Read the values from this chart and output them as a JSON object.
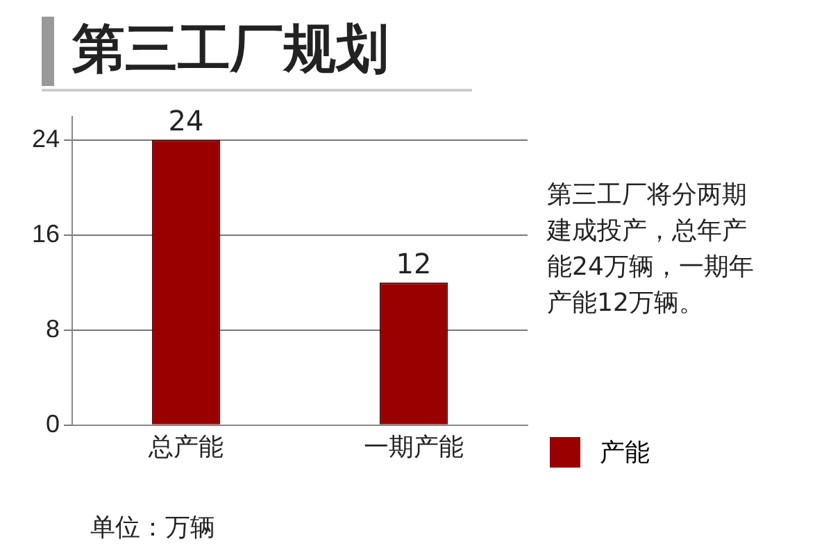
{
  "chart_data": {
    "type": "bar",
    "title": "第三工厂规划",
    "categories": [
      "总产能",
      "一期产能"
    ],
    "series": [
      {
        "name": "产能",
        "color": "#990000",
        "values": [
          24,
          12
        ]
      }
    ],
    "ylim": [
      0,
      26
    ],
    "yticks": [
      0,
      8,
      16,
      24
    ],
    "grid": "y",
    "legend": "bottom right",
    "data_labels": true,
    "annotations": [
      "第三工厂将分两期建成投产，总年产能24万辆，一期年产能12万辆。",
      "单位：万辆"
    ]
  }
}
